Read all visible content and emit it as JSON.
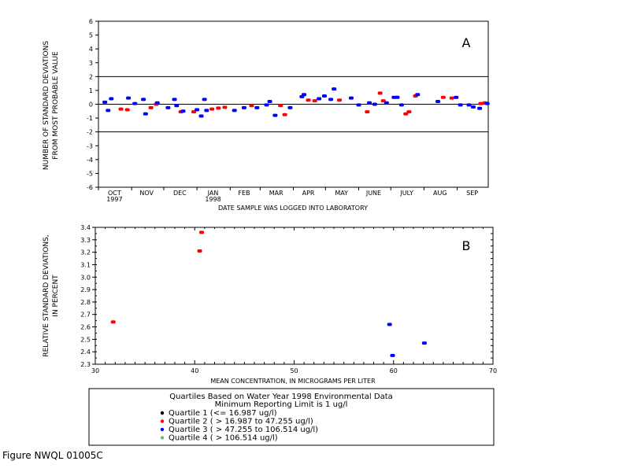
{
  "colors": {
    "quartile1": "#000000",
    "quartile2": "#ff0000",
    "quartile3": "#0000ff",
    "quartile4": "#6fb36f",
    "axis": "#000000",
    "background": "#ffffff"
  },
  "chart_data": [
    {
      "type": "scatter",
      "panel_label": "A",
      "title": "",
      "xlabel": "DATE SAMPLE WAS LOGGED INTO LABORATORY",
      "ylabel_lines": [
        "NUMBER OF STANDARD DEVIATIONS",
        "FROM MOST PROBABLE VALUE"
      ],
      "ylim": [
        -6,
        6
      ],
      "yticks": [
        6,
        5,
        4,
        3,
        2,
        1,
        0,
        -1,
        -2,
        -3,
        -4,
        -5,
        -6
      ],
      "xlim": [
        "1997-10-01",
        "1998-09-30"
      ],
      "x_month_labels": [
        {
          "label": "OCT",
          "year": "1997",
          "center": "1997-10-16"
        },
        {
          "label": "NOV",
          "center": "1997-11-15"
        },
        {
          "label": "DEC",
          "center": "1997-12-16"
        },
        {
          "label": "JAN",
          "year": "1998",
          "center": "1998-01-16"
        },
        {
          "label": "FEB",
          "center": "1998-02-14"
        },
        {
          "label": "MAR",
          "center": "1998-03-16"
        },
        {
          "label": "APR",
          "center": "1998-04-15"
        },
        {
          "label": "MAY",
          "center": "1998-05-16"
        },
        {
          "label": "JUNE",
          "center": "1998-06-15"
        },
        {
          "label": "JULY",
          "center": "1998-07-16"
        },
        {
          "label": "AUG",
          "center": "1998-08-16"
        },
        {
          "label": "SEP",
          "center": "1998-09-15"
        }
      ],
      "reference_lines_y": [
        2,
        0,
        -2
      ],
      "series": [
        {
          "name": "Quartile 2 ( > 16.987 to 47.255 ug/l)",
          "color": "#ff0000",
          "points": [
            [
              "1997-10-22",
              -0.35
            ],
            [
              "1997-10-28",
              -0.4
            ],
            [
              "1997-11-19",
              -0.25
            ],
            [
              "1997-11-24",
              0.0
            ],
            [
              "1997-12-17",
              -0.55
            ],
            [
              "1997-12-29",
              -0.55
            ],
            [
              "1998-01-15",
              -0.35
            ],
            [
              "1998-01-21",
              -0.28
            ],
            [
              "1998-01-27",
              -0.22
            ],
            [
              "1998-02-21",
              -0.1
            ],
            [
              "1998-03-20",
              -0.1
            ],
            [
              "1998-03-24",
              -0.75
            ],
            [
              "1998-04-15",
              0.3
            ],
            [
              "1998-04-21",
              0.25
            ],
            [
              "1998-05-14",
              0.3
            ],
            [
              "1998-06-09",
              -0.55
            ],
            [
              "1998-06-21",
              0.8
            ],
            [
              "1998-06-24",
              0.25
            ],
            [
              "1998-07-15",
              -0.7
            ],
            [
              "1998-07-18",
              -0.55
            ],
            [
              "1998-07-24",
              0.6
            ],
            [
              "1998-08-19",
              0.5
            ],
            [
              "1998-08-27",
              0.45
            ],
            [
              "1998-09-23",
              0.05
            ],
            [
              "1998-09-27",
              0.1
            ]
          ]
        },
        {
          "name": "Quartile 3 ( > 47.255 to 106.514 ug/l)",
          "color": "#0000ff",
          "points": [
            [
              "1997-10-07",
              0.15
            ],
            [
              "1997-10-10",
              -0.45
            ],
            [
              "1997-10-13",
              0.4
            ],
            [
              "1997-10-29",
              0.45
            ],
            [
              "1997-11-04",
              0.05
            ],
            [
              "1997-11-12",
              0.35
            ],
            [
              "1997-11-14",
              -0.7
            ],
            [
              "1997-11-25",
              0.1
            ],
            [
              "1997-12-05",
              -0.25
            ],
            [
              "1997-12-11",
              0.35
            ],
            [
              "1997-12-13",
              -0.1
            ],
            [
              "1997-12-19",
              -0.5
            ],
            [
              "1998-01-01",
              -0.4
            ],
            [
              "1998-01-05",
              -0.85
            ],
            [
              "1998-01-08",
              0.35
            ],
            [
              "1998-01-10",
              -0.45
            ],
            [
              "1998-02-05",
              -0.45
            ],
            [
              "1998-02-14",
              -0.25
            ],
            [
              "1998-02-26",
              -0.25
            ],
            [
              "1998-03-07",
              -0.05
            ],
            [
              "1998-03-10",
              0.2
            ],
            [
              "1998-03-15",
              -0.8
            ],
            [
              "1998-03-29",
              -0.25
            ],
            [
              "1998-04-09",
              0.55
            ],
            [
              "1998-04-11",
              0.7
            ],
            [
              "1998-04-25",
              0.4
            ],
            [
              "1998-04-30",
              0.6
            ],
            [
              "1998-05-06",
              0.35
            ],
            [
              "1998-05-09",
              1.1
            ],
            [
              "1998-05-25",
              0.45
            ],
            [
              "1998-06-01",
              -0.05
            ],
            [
              "1998-06-11",
              0.1
            ],
            [
              "1998-06-16",
              0.0
            ],
            [
              "1998-06-27",
              0.1
            ],
            [
              "1998-07-04",
              0.5
            ],
            [
              "1998-07-07",
              0.5
            ],
            [
              "1998-07-11",
              -0.05
            ],
            [
              "1998-07-26",
              0.7
            ],
            [
              "1998-08-14",
              0.2
            ],
            [
              "1998-08-31",
              0.5
            ],
            [
              "1998-09-04",
              -0.05
            ],
            [
              "1998-09-12",
              -0.05
            ],
            [
              "1998-09-16",
              -0.2
            ],
            [
              "1998-09-22",
              -0.3
            ],
            [
              "1998-09-29",
              0.05
            ]
          ]
        }
      ]
    },
    {
      "type": "scatter",
      "panel_label": "B",
      "title": "",
      "xlabel": "MEAN CONCENTRATION, IN MICROGRAMS PER LITER",
      "ylabel_lines": [
        "RELATIVE STANDARD DEVIATIONS,",
        "IN PERCENT"
      ],
      "xlim": [
        30,
        70
      ],
      "xticks": [
        30,
        40,
        50,
        60,
        70
      ],
      "ylim": [
        2.3,
        3.4
      ],
      "yticks": [
        3.4,
        3.3,
        3.2,
        3.1,
        3.0,
        2.9,
        2.8,
        2.7,
        2.6,
        2.5,
        2.4,
        2.3
      ],
      "series": [
        {
          "name": "Quartile 2 ( > 16.987 to 47.255 ug/l)",
          "color": "#ff0000",
          "points": [
            [
              31.8,
              2.64
            ],
            [
              40.5,
              3.21
            ],
            [
              40.7,
              3.36
            ]
          ]
        },
        {
          "name": "Quartile 3 ( > 47.255 to 106.514 ug/l)",
          "color": "#0000ff",
          "points": [
            [
              59.6,
              2.62
            ],
            [
              59.9,
              2.37
            ],
            [
              63.1,
              2.47
            ]
          ]
        }
      ]
    }
  ],
  "legend": {
    "title_line1": "Quartiles Based on Water Year 1998 Environmental Data",
    "title_line2": "Minimum Reporting Limit is 1 ug/l",
    "items": [
      {
        "text": "Quartile 1 (<= 16.987           ug/l)",
        "color": "#000000"
      },
      {
        "text": "Quartile 2 ( > 16.987 to 47.255   ug/l)",
        "color": "#ff0000"
      },
      {
        "text": "Quartile 3 ( > 47.255 to 106.514 ug/l)",
        "color": "#0000ff"
      },
      {
        "text": "Quartile 4 ( > 106.514              ug/l)",
        "color": "#6fb36f"
      }
    ]
  },
  "figure_caption": "Figure NWQL 01005C"
}
